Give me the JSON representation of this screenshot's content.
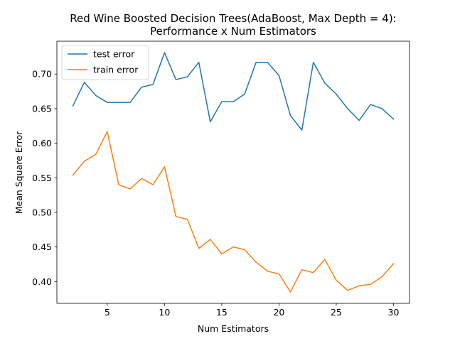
{
  "chart_data": {
    "type": "line",
    "title_line1": "Red Wine Boosted Decision Trees(AdaBoost, Max Depth = 4):",
    "title_line2": "Performance x Num Estimators",
    "xlabel": "Num Estimators",
    "ylabel": "Mean Square Error",
    "xlim": [
      0.6,
      31.4
    ],
    "ylim": [
      0.3685,
      0.7475
    ],
    "xticks": [
      5,
      10,
      15,
      20,
      25,
      30
    ],
    "yticks": [
      0.4,
      0.45,
      0.5,
      0.55,
      0.6,
      0.65,
      0.7
    ],
    "xtick_labels": [
      "5",
      "10",
      "15",
      "20",
      "25",
      "30"
    ],
    "ytick_labels": [
      "0.40",
      "0.45",
      "0.50",
      "0.55",
      "0.60",
      "0.65",
      "0.70"
    ],
    "legend_position": "top-left",
    "x": [
      2,
      3,
      4,
      5,
      6,
      7,
      8,
      9,
      10,
      11,
      12,
      13,
      14,
      15,
      16,
      17,
      18,
      19,
      20,
      21,
      22,
      23,
      24,
      25,
      26,
      27,
      28,
      29,
      30
    ],
    "series": [
      {
        "name": "test error",
        "color": "#1f77b4",
        "values": [
          0.654,
          0.688,
          0.669,
          0.659,
          0.659,
          0.659,
          0.681,
          0.685,
          0.731,
          0.692,
          0.696,
          0.717,
          0.631,
          0.66,
          0.66,
          0.671,
          0.717,
          0.717,
          0.698,
          0.64,
          0.619,
          0.717,
          0.687,
          0.671,
          0.65,
          0.633,
          0.656,
          0.65,
          0.635
        ]
      },
      {
        "name": "train error",
        "color": "#ff7f0e",
        "values": [
          0.554,
          0.574,
          0.584,
          0.617,
          0.54,
          0.534,
          0.549,
          0.54,
          0.566,
          0.494,
          0.49,
          0.448,
          0.461,
          0.44,
          0.45,
          0.446,
          0.428,
          0.415,
          0.411,
          0.385,
          0.417,
          0.413,
          0.432,
          0.402,
          0.387,
          0.394,
          0.396,
          0.407,
          0.426
        ]
      }
    ]
  }
}
